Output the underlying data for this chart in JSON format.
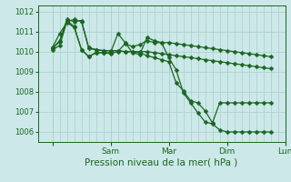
{
  "bg_color": "#cce8e8",
  "grid_color": "#aacece",
  "line_color": "#1a6620",
  "title": "Pression niveau de la mer( hPa )",
  "ylim": [
    1005.5,
    1012.3
  ],
  "yticks": [
    1006,
    1007,
    1008,
    1009,
    1010,
    1011,
    1012
  ],
  "xlim": [
    -12,
    180
  ],
  "xtick_positions": [
    0,
    48,
    96,
    144,
    192
  ],
  "xtick_labels": [
    "",
    "Sam",
    "Mar",
    "Dim",
    "Lun"
  ],
  "series": [
    {
      "x": [
        0,
        6,
        12,
        18,
        24,
        30,
        36,
        42,
        48,
        54,
        60,
        66,
        72,
        78,
        84,
        90,
        96,
        102,
        108,
        114,
        120,
        126,
        132,
        138,
        144,
        150,
        156,
        162,
        168,
        174,
        180
      ],
      "y": [
        1010.1,
        1010.3,
        1011.5,
        1011.6,
        1011.5,
        1010.2,
        1010.1,
        1010.05,
        1010.05,
        1010.05,
        1010.0,
        1010.0,
        1010.0,
        1010.0,
        1009.95,
        1009.9,
        1009.85,
        1009.8,
        1009.75,
        1009.7,
        1009.65,
        1009.6,
        1009.55,
        1009.5,
        1009.45,
        1009.4,
        1009.35,
        1009.3,
        1009.25,
        1009.2,
        1009.15
      ]
    },
    {
      "x": [
        0,
        6,
        12,
        18,
        24,
        30,
        36,
        42,
        48,
        54,
        60,
        66,
        72,
        78,
        84,
        90,
        96,
        102,
        108,
        114,
        120,
        126,
        132,
        138,
        144,
        150,
        156,
        162,
        168,
        174,
        180
      ],
      "y": [
        1010.15,
        1010.55,
        1011.55,
        1011.25,
        1010.1,
        1009.75,
        1009.95,
        1009.95,
        1009.9,
        1010.0,
        1010.4,
        1010.25,
        1010.35,
        1010.55,
        1010.45,
        1010.45,
        1010.45,
        1010.4,
        1010.35,
        1010.3,
        1010.25,
        1010.2,
        1010.15,
        1010.1,
        1010.05,
        1010.0,
        1009.95,
        1009.9,
        1009.85,
        1009.8,
        1009.75
      ]
    },
    {
      "x": [
        0,
        6,
        12,
        18,
        24,
        30,
        36,
        42,
        48,
        54,
        60,
        66,
        72,
        78,
        84,
        90,
        96,
        102,
        108,
        114,
        120,
        126,
        132,
        138,
        144,
        150,
        156,
        162,
        168,
        174,
        180
      ],
      "y": [
        1010.2,
        1010.9,
        1011.45,
        1011.2,
        1010.1,
        1009.75,
        1009.95,
        1009.95,
        1009.95,
        1010.9,
        1010.45,
        1009.95,
        1009.85,
        1010.7,
        1010.55,
        1010.45,
        1009.7,
        1009.1,
        1007.95,
        1007.45,
        1006.95,
        1006.5,
        1006.4,
        1006.1,
        1006.0,
        1006.0,
        1006.0,
        1006.0,
        1006.0,
        1006.0,
        1006.0
      ]
    },
    {
      "x": [
        0,
        6,
        12,
        18,
        24,
        30,
        36,
        42,
        48,
        54,
        60,
        66,
        72,
        78,
        84,
        90,
        96,
        102,
        108,
        114,
        120,
        126,
        132,
        138,
        144,
        150,
        156,
        162,
        168,
        174,
        180
      ],
      "y": [
        1010.15,
        1010.5,
        1011.6,
        1011.5,
        1011.55,
        1010.15,
        1010.1,
        1010.05,
        1010.05,
        1010.05,
        1010.0,
        1010.0,
        1009.95,
        1009.8,
        1009.7,
        1009.6,
        1009.5,
        1008.45,
        1008.05,
        1007.55,
        1007.45,
        1007.05,
        1006.45,
        1007.45,
        1007.45,
        1007.45,
        1007.45,
        1007.45,
        1007.45,
        1007.45,
        1007.45
      ]
    }
  ],
  "marker": "D",
  "markersize": 2.5,
  "linewidth": 0.9,
  "ytick_fontsize": 6,
  "xtick_fontsize": 6.5,
  "xlabel_fontsize": 7.5
}
